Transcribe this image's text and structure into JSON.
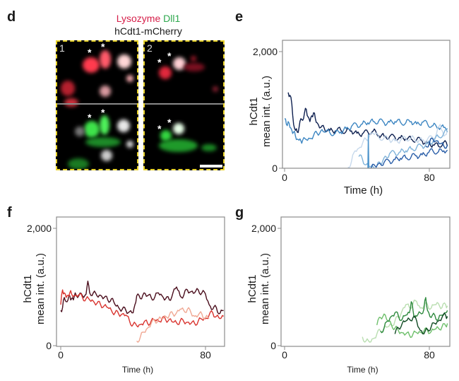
{
  "panel_d": {
    "letter": "d",
    "title_red": "Lysozyme",
    "title_green": "Dll1",
    "title_line2": "hCdt1-mCherry",
    "title_red_color": "#d6204a",
    "title_green_color": "#2ea84e",
    "images": [
      {
        "label": "1",
        "stars_top": [
          "*",
          "*"
        ],
        "stars_bottom": [
          "*",
          "*"
        ]
      },
      {
        "label": "2",
        "stars_top": [
          "*",
          "*"
        ],
        "stars_bottom": [
          "*",
          "*"
        ]
      }
    ],
    "border_color": "#e8d22a"
  },
  "chart_data": [
    {
      "panel": "e",
      "type": "line",
      "xlabel": "Time (h)",
      "ylabel_line1": "hCdt1",
      "ylabel_line2": "mean int. (a.u.)",
      "xlim": [
        0,
        90
      ],
      "ylim": [
        0,
        2200
      ],
      "xticks": [
        0,
        80
      ],
      "xtick_labels": [
        "0",
        "80"
      ],
      "yticks": [
        0,
        2000
      ],
      "ytick_labels": [
        "0",
        "2,000"
      ],
      "grid": false,
      "series": [
        {
          "name": "trace-1",
          "color": "#0d1f4f",
          "x": [
            2,
            3,
            4,
            5,
            6,
            7,
            8,
            9,
            10,
            11,
            12,
            13,
            14,
            15,
            16,
            17,
            18,
            20,
            22,
            25,
            28,
            31,
            34,
            37,
            40,
            43,
            46,
            49,
            52,
            55,
            58,
            61,
            64,
            67,
            70,
            73,
            76,
            79,
            82,
            85,
            88,
            90
          ],
          "y": [
            1300,
            1250,
            1100,
            750,
            650,
            620,
            700,
            850,
            820,
            950,
            1010,
            880,
            800,
            900,
            950,
            850,
            780,
            700,
            680,
            650,
            640,
            660,
            630,
            640,
            600,
            590,
            620,
            640,
            560,
            550,
            540,
            530,
            520,
            510,
            500,
            490,
            470,
            430,
            400,
            380,
            450,
            380
          ]
        },
        {
          "name": "trace-2",
          "color": "#3d86c2",
          "x": [
            0,
            1,
            2,
            3,
            4,
            5,
            6,
            7,
            8,
            9,
            10,
            12,
            14,
            16,
            18,
            20,
            22,
            25,
            28,
            31,
            34,
            37,
            40,
            43,
            46,
            49,
            52,
            55,
            58,
            61,
            64,
            67,
            70,
            73,
            76,
            79,
            82,
            85,
            88,
            90
          ],
          "y": [
            850,
            750,
            800,
            700,
            650,
            620,
            550,
            500,
            480,
            470,
            480,
            490,
            510,
            560,
            600,
            640,
            620,
            610,
            600,
            620,
            680,
            720,
            740,
            760,
            780,
            800,
            810,
            780,
            790,
            800,
            790,
            780,
            800,
            760,
            790,
            760,
            730,
            700,
            700,
            680
          ]
        },
        {
          "name": "trace-3",
          "color": "#c7d9ec",
          "x": [
            35,
            37,
            39,
            41,
            43,
            45,
            47,
            49,
            52,
            55,
            58,
            61,
            64,
            67,
            70,
            73,
            76,
            79,
            82,
            84,
            86,
            88,
            90
          ],
          "y": [
            20,
            120,
            300,
            340,
            420,
            500,
            560,
            600,
            530,
            520,
            490,
            470,
            480,
            510,
            520,
            470,
            480,
            500,
            520,
            600,
            750,
            550,
            650
          ]
        },
        {
          "name": "trace-4",
          "color": "#7fb3da",
          "x": [
            41,
            43,
            45,
            47,
            49,
            51,
            53,
            55,
            58,
            61,
            64,
            67,
            70,
            73,
            76,
            79,
            82,
            85,
            88,
            90
          ],
          "y": [
            200,
            160,
            60,
            30,
            20,
            40,
            80,
            180,
            250,
            260,
            280,
            300,
            330,
            360,
            380,
            420,
            460,
            540,
            600,
            620
          ]
        },
        {
          "name": "trace-5",
          "color": "#2a5ea8",
          "x": [
            47,
            48,
            50,
            52,
            55,
            58,
            61,
            64,
            67,
            70,
            73,
            76,
            79,
            82,
            85,
            88,
            90
          ],
          "y": [
            0,
            10,
            40,
            80,
            100,
            120,
            150,
            170,
            180,
            200,
            210,
            230,
            260,
            300,
            280,
            300,
            310
          ]
        },
        {
          "name": "trace-6",
          "color": "#4f95cc",
          "x": [
            46,
            46.3,
            46.6
          ],
          "y": [
            0,
            580,
            0
          ]
        },
        {
          "name": "trace-7",
          "color": "#1f55a0",
          "x": [
            78,
            80,
            82,
            84,
            86,
            88,
            90
          ],
          "y": [
            380,
            430,
            500,
            470,
            420,
            380,
            400
          ]
        }
      ]
    },
    {
      "panel": "f",
      "type": "line",
      "xlabel": "Time (h)",
      "ylabel_line1": "hCdt1",
      "ylabel_line2": "mean int. (a.u.)",
      "xlim": [
        0,
        90
      ],
      "ylim": [
        0,
        2200
      ],
      "xticks": [
        0,
        80
      ],
      "xtick_labels": [
        "0",
        "80"
      ],
      "yticks": [
        0,
        2000
      ],
      "ytick_labels": [
        "0",
        "2,000"
      ],
      "grid": false,
      "series": [
        {
          "name": "trace-1",
          "color": "#4a0d1c",
          "x": [
            0,
            1,
            2,
            3,
            4,
            5,
            6,
            7,
            8,
            10,
            12,
            14,
            15,
            16,
            18,
            20,
            22,
            24,
            26,
            28,
            30,
            32,
            34,
            36,
            38,
            40,
            41,
            42,
            44,
            46,
            48,
            50,
            52,
            54,
            56,
            58,
            60,
            62,
            64,
            66,
            68,
            70,
            72,
            74,
            76,
            78,
            80,
            82,
            84,
            86,
            88,
            90
          ],
          "y": [
            600,
            650,
            820,
            750,
            780,
            850,
            800,
            780,
            900,
            850,
            850,
            880,
            1100,
            900,
            900,
            850,
            860,
            820,
            780,
            800,
            700,
            650,
            620,
            600,
            580,
            560,
            700,
            850,
            800,
            900,
            850,
            820,
            830,
            900,
            850,
            800,
            780,
            900,
            1000,
            850,
            860,
            950,
            920,
            900,
            950,
            900,
            880,
            700,
            620,
            650,
            550,
            600
          ]
        },
        {
          "name": "trace-2",
          "color": "#d9342f",
          "x": [
            0,
            1,
            2,
            3,
            4,
            5,
            6,
            8,
            10,
            12,
            14,
            16,
            18,
            20,
            22,
            24,
            26,
            28,
            30,
            32,
            34,
            36,
            38,
            40,
            42,
            44,
            46,
            48,
            50,
            52,
            54,
            56,
            58,
            60,
            62,
            64,
            66,
            68,
            70,
            72,
            74,
            76,
            78,
            80,
            82,
            84,
            86,
            88,
            90
          ],
          "y": [
            700,
            950,
            900,
            820,
            860,
            900,
            880,
            850,
            870,
            820,
            800,
            780,
            760,
            720,
            700,
            680,
            650,
            600,
            560,
            540,
            540,
            520,
            420,
            360,
            340,
            360,
            400,
            380,
            420,
            440,
            420,
            460,
            440,
            450,
            400,
            390,
            420,
            410,
            400,
            380,
            380,
            420,
            450,
            460,
            520,
            560,
            500,
            460,
            500
          ]
        },
        {
          "name": "trace-3",
          "color": "#f0a893",
          "x": [
            42,
            44,
            46,
            48,
            50,
            52,
            54,
            56,
            58,
            60,
            62,
            64,
            66,
            68,
            70,
            72,
            74,
            76,
            78,
            80,
            82
          ],
          "y": [
            80,
            150,
            230,
            300,
            380,
            420,
            450,
            460,
            500,
            520,
            540,
            560,
            620,
            600,
            620,
            560,
            500,
            520,
            540,
            480,
            460
          ]
        }
      ]
    },
    {
      "panel": "g",
      "type": "line",
      "xlabel": "Time (h)",
      "ylabel_line1": "hCdt1",
      "ylabel_line2": "mean int. (a.u.)",
      "xlim": [
        0,
        90
      ],
      "ylim": [
        0,
        2200
      ],
      "xticks": [
        0,
        80
      ],
      "xtick_labels": [
        "0",
        "80"
      ],
      "yticks": [
        0,
        2000
      ],
      "ytick_labels": [
        "0",
        "2,000"
      ],
      "grid": false,
      "series": [
        {
          "name": "trace-1",
          "color": "#b9deb0",
          "x": [
            43,
            45,
            47,
            49,
            51,
            53,
            55,
            57,
            59,
            61,
            63,
            65,
            67,
            69,
            71,
            73,
            75,
            77,
            79,
            81,
            83,
            85,
            87,
            89,
            90
          ],
          "y": [
            150,
            80,
            60,
            120,
            200,
            250,
            300,
            320,
            350,
            420,
            480,
            600,
            700,
            650,
            720,
            750,
            640,
            680,
            700,
            640,
            700,
            720,
            650,
            700,
            680
          ]
        },
        {
          "name": "trace-2",
          "color": "#6dbf6a",
          "x": [
            51,
            53,
            55,
            57,
            59,
            61,
            63,
            65,
            67,
            69,
            71,
            73,
            75,
            77,
            79,
            81,
            83,
            85,
            87,
            89,
            90
          ],
          "y": [
            350,
            480,
            540,
            420,
            360,
            300,
            250,
            220,
            200,
            180,
            200,
            220,
            230,
            250,
            260,
            240,
            280,
            300,
            320,
            340,
            380
          ]
        },
        {
          "name": "trace-3",
          "color": "#2e8a3e",
          "x": [
            53,
            55,
            57,
            59,
            61,
            63,
            65,
            67,
            69,
            70,
            71,
            72,
            73,
            75,
            77,
            78,
            79,
            81,
            83,
            85,
            87,
            89,
            90
          ],
          "y": [
            250,
            300,
            420,
            500,
            560,
            500,
            450,
            520,
            560,
            750,
            600,
            480,
            500,
            560,
            620,
            820,
            600,
            480,
            520,
            450,
            520,
            560,
            600
          ]
        },
        {
          "name": "trace-4",
          "color": "#0f4a22",
          "x": [
            61,
            63,
            65,
            67,
            69,
            71,
            73,
            75,
            77,
            79,
            81,
            83,
            85,
            87,
            89,
            90
          ],
          "y": [
            200,
            300,
            380,
            420,
            450,
            480,
            420,
            260,
            200,
            280,
            320,
            380,
            420,
            480,
            520,
            500
          ]
        }
      ]
    }
  ]
}
